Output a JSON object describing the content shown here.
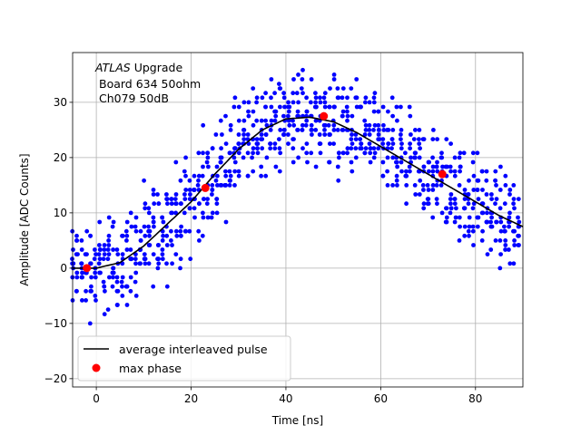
{
  "chart_data": {
    "type": "scatter",
    "title": "",
    "annotation": {
      "experiment": "ATLAS",
      "line1_rest": " Upgrade",
      "line2": "Board 634 50ohm",
      "line3": "Ch079 50dB"
    },
    "xlabel": "Time [ns]",
    "ylabel": "Amplitude [ADC Counts]",
    "xlim": [
      -5,
      90
    ],
    "ylim": [
      -21.5,
      39
    ],
    "xticks": [
      0,
      20,
      40,
      60,
      80
    ],
    "yticks": [
      -20,
      -10,
      0,
      10,
      20,
      30
    ],
    "grid": true,
    "legend_position": "lower-left",
    "colors": {
      "samples": "#0000ff",
      "average": "#000000",
      "max_phase": "#ff0000"
    },
    "series": [
      {
        "name": "samples",
        "kind": "scatter",
        "legend": false,
        "note": "dense cloud of individual ADC samples scattered around the average pulse, spread about +/-6 ADC counts"
      },
      {
        "name": "average interleaved pulse",
        "kind": "line",
        "x": [
          -5,
          0,
          5,
          10,
          15,
          20,
          25,
          30,
          35,
          40,
          45,
          50,
          55,
          60,
          65,
          70,
          75,
          80,
          85,
          90
        ],
        "y": [
          0,
          0,
          1,
          4,
          8,
          12,
          17,
          21.5,
          25,
          27,
          27.3,
          26.5,
          24.5,
          22,
          19.5,
          17,
          14.5,
          12,
          9.5,
          7.5
        ]
      },
      {
        "name": "max phase",
        "kind": "scatter",
        "x": [
          -2,
          23,
          48,
          73
        ],
        "y": [
          0,
          14.5,
          27.5,
          17
        ]
      }
    ]
  }
}
